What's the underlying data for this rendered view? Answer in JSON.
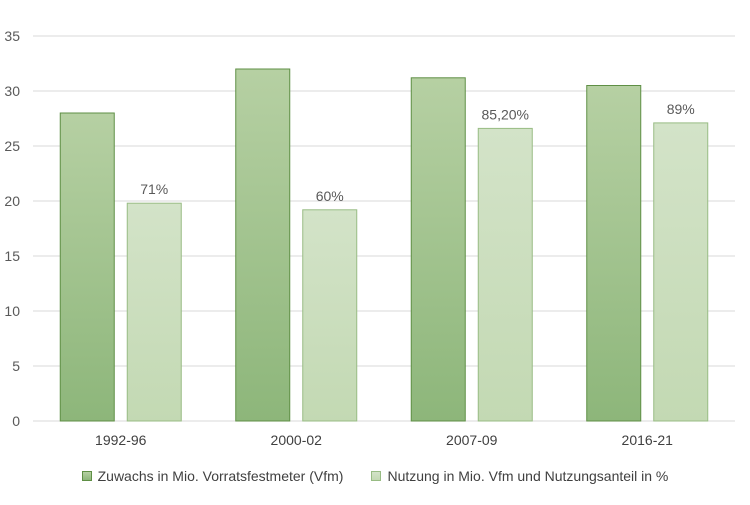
{
  "chart_data": {
    "type": "bar",
    "title": "",
    "xlabel": "",
    "ylabel": "",
    "ylim": [
      0,
      35
    ],
    "yticks": [
      0,
      5,
      10,
      15,
      20,
      25,
      30,
      35
    ],
    "grid": true,
    "legend_position": "bottom",
    "categories": [
      "1992-96",
      "2000-02",
      "2007-09",
      "2016-21"
    ],
    "series": [
      {
        "name": "Zuwachs in Mio. Vorratsfestmeter (Vfm)",
        "values": [
          28,
          32,
          31.2,
          30.5
        ],
        "labels": [
          "",
          "",
          "",
          ""
        ],
        "color_top": "#b6d0a3",
        "color_bottom": "#8db67a",
        "border": "#5f8f45"
      },
      {
        "name": "Nutzung in Mio. Vfm und Nutzungsanteil in %",
        "values": [
          19.8,
          19.2,
          26.6,
          27.1
        ],
        "labels": [
          "71%",
          "60%",
          "85,20%",
          "89%"
        ],
        "color_top": "#d3e3c8",
        "color_bottom": "#c3d9b3",
        "border": "#98bc84"
      }
    ]
  }
}
